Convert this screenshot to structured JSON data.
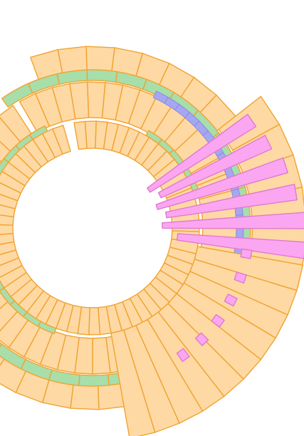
{
  "colors": {
    "background": "#ffffff",
    "block_fill": "#fed9a4",
    "block_stroke": "#f1a330",
    "green_band_fill": "#a7deaa",
    "green_band_stroke": "#f1a330",
    "blue_band_fill": "#a7a7f1",
    "blue_band_stroke": "#8a8ae0",
    "pink_fill": "#fba6f1",
    "pink_stroke": "#e07ad0"
  }
}
